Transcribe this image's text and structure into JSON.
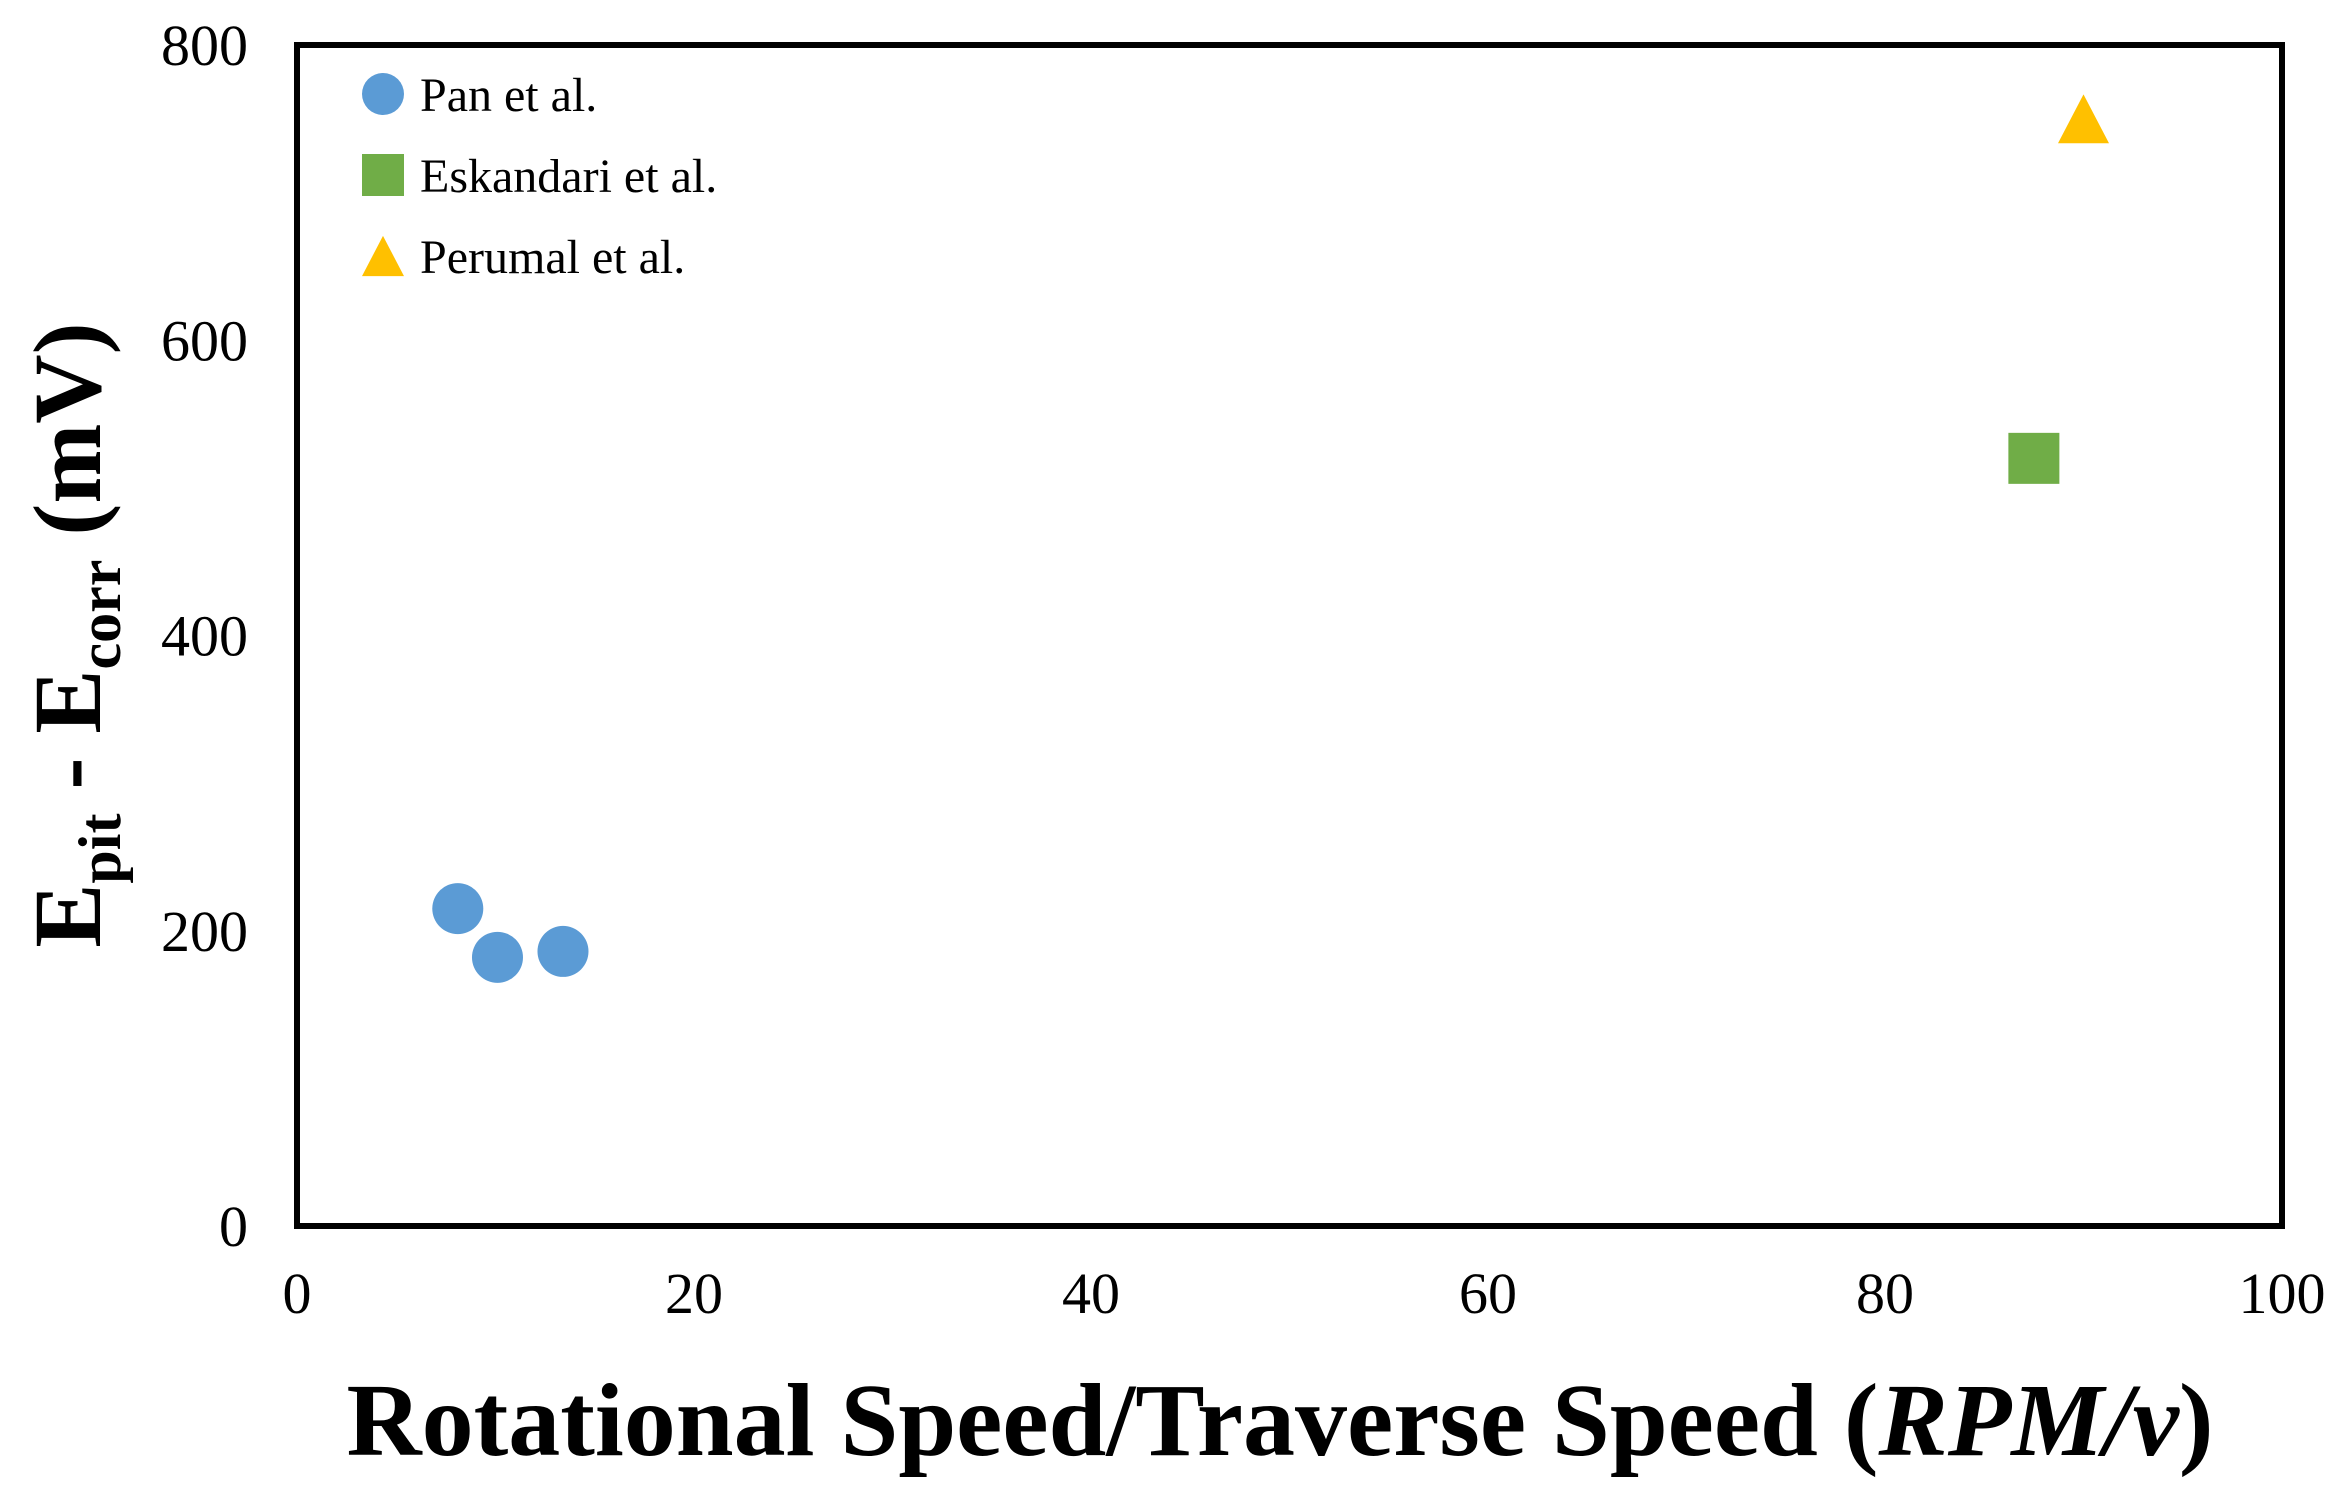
{
  "figure": {
    "background_color": "#ffffff",
    "frame_color": "#000000",
    "text_color": "#000000"
  },
  "chart_data": {
    "type": "scatter",
    "title": "",
    "xlabel": "Rotational Speed/Traverse Speed (RPM/v)",
    "xlabel_parts": {
      "main": "Rotational Speed/Traverse Speed (",
      "italic_unit": "RPM/v",
      "suffix": ")"
    },
    "ylabel": "Epit - Ecorr (mV)",
    "ylabel_parts": [
      {
        "text": "E"
      },
      {
        "sub": "pit"
      },
      {
        "text": " - E"
      },
      {
        "sub": "corr"
      },
      {
        "text": " (mV)"
      }
    ],
    "xlim": [
      0,
      100
    ],
    "ylim": [
      0,
      800
    ],
    "xticks": [
      0,
      20,
      40,
      60,
      80,
      100
    ],
    "yticks": [
      0,
      200,
      400,
      600,
      800
    ],
    "grid": false,
    "legend_position": "top-left-inside",
    "series": [
      {
        "name": "Pan et al.",
        "marker": "circle",
        "color": "#5B9BD5",
        "points": [
          [
            8.1,
            215
          ],
          [
            10.1,
            182
          ],
          [
            13.4,
            186
          ]
        ]
      },
      {
        "name": "Eskandari et al.",
        "marker": "square",
        "color": "#70AD47",
        "points": [
          [
            87.5,
            520
          ]
        ]
      },
      {
        "name": "Perumal et al.",
        "marker": "triangle",
        "color": "#FFC000",
        "points": [
          [
            90,
            750
          ]
        ]
      }
    ]
  }
}
